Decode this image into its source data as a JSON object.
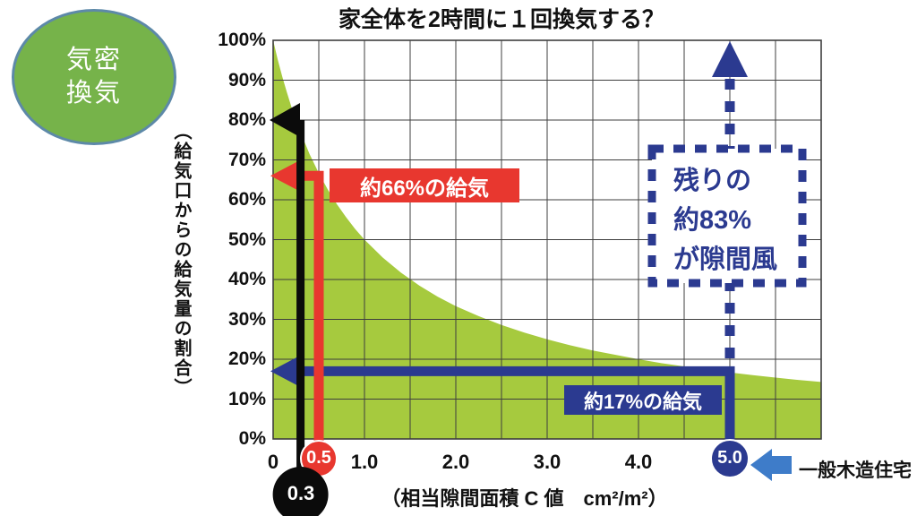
{
  "badge": {
    "lines": [
      "気密",
      "換気"
    ],
    "bg_color": "#76b34a",
    "border_color": "#5d89a8"
  },
  "chart_data": {
    "type": "area",
    "title": "家全体を2時間に１回換気する？",
    "xlabel": "（相当隙間面積 C 値　cm²/m²）",
    "ylabel": "（給気口からの給気量の割合）",
    "xlim": [
      0,
      6
    ],
    "ylim": [
      0,
      100
    ],
    "grid": {
      "visible": true,
      "x_step": 0.5,
      "y_step": 10
    },
    "x_ticks": [
      {
        "value": 0,
        "label": "0"
      },
      {
        "value": 1,
        "label": "1.0"
      },
      {
        "value": 2,
        "label": "2.0"
      },
      {
        "value": 3,
        "label": "3.0"
      },
      {
        "value": 4,
        "label": "4.0"
      }
    ],
    "y_ticks": [
      {
        "value": 100,
        "label": "100%"
      },
      {
        "value": 90,
        "label": "90%"
      },
      {
        "value": 80,
        "label": "80%"
      },
      {
        "value": 70,
        "label": "70%"
      },
      {
        "value": 60,
        "label": "60%"
      },
      {
        "value": 50,
        "label": "50%"
      },
      {
        "value": 40,
        "label": "40%"
      },
      {
        "value": 30,
        "label": "30%"
      },
      {
        "value": 20,
        "label": "20%"
      },
      {
        "value": 10,
        "label": "10%"
      },
      {
        "value": 0,
        "label": "0%"
      }
    ],
    "series": [
      {
        "name": "給気口からの給気量の割合",
        "formula": "y ≈ 100 / (1 + C)",
        "fill_color": "#a6ca3e",
        "points": [
          [
            0,
            100
          ],
          [
            0.05,
            95.2
          ],
          [
            0.1,
            90.9
          ],
          [
            0.15,
            87.0
          ],
          [
            0.2,
            83.3
          ],
          [
            0.25,
            80.0
          ],
          [
            0.3,
            76.9
          ],
          [
            0.4,
            71.4
          ],
          [
            0.5,
            66.7
          ],
          [
            0.6,
            62.5
          ],
          [
            0.7,
            58.8
          ],
          [
            0.8,
            55.6
          ],
          [
            0.9,
            52.6
          ],
          [
            1.0,
            50.0
          ],
          [
            1.2,
            45.5
          ],
          [
            1.4,
            41.7
          ],
          [
            1.6,
            38.5
          ],
          [
            1.8,
            35.7
          ],
          [
            2.0,
            33.3
          ],
          [
            2.25,
            30.8
          ],
          [
            2.5,
            28.6
          ],
          [
            2.75,
            26.7
          ],
          [
            3.0,
            25.0
          ],
          [
            3.25,
            23.5
          ],
          [
            3.5,
            22.2
          ],
          [
            3.75,
            21.1
          ],
          [
            4.0,
            20.0
          ],
          [
            4.25,
            19.0
          ],
          [
            4.5,
            18.2
          ],
          [
            4.75,
            17.4
          ],
          [
            5.0,
            16.7
          ],
          [
            5.25,
            16.0
          ],
          [
            5.5,
            15.4
          ],
          [
            5.75,
            14.8
          ],
          [
            6.0,
            14.3
          ]
        ]
      }
    ],
    "markers": [
      {
        "label": "0.3",
        "x": 0.3,
        "arrow_to_y": 80,
        "color": "#0b0b0b"
      },
      {
        "label": "0.5",
        "x": 0.5,
        "arrow_to_y": 66,
        "color": "#e8372f"
      },
      {
        "label": "5.0",
        "x": 5.0,
        "arrow_to_y": 17,
        "color": "#2b3a90"
      }
    ],
    "annotations": {
      "supply_66": {
        "text": "約66%の給気",
        "box_color": "#e8372f",
        "text_color": "#ffffff"
      },
      "supply_17": {
        "text": "約17%の給気",
        "box_color": "#2b3a90",
        "text_color": "#ffffff"
      },
      "draft": {
        "lines": [
          "残りの",
          "約83%",
          "が隙間風"
        ],
        "value_pct": 83,
        "color": "#2b3a90",
        "box_style": "dashed"
      },
      "house": {
        "text": "一般木造住宅",
        "arrow_color": "#3e7cc9",
        "points_to": "5.0"
      }
    }
  }
}
